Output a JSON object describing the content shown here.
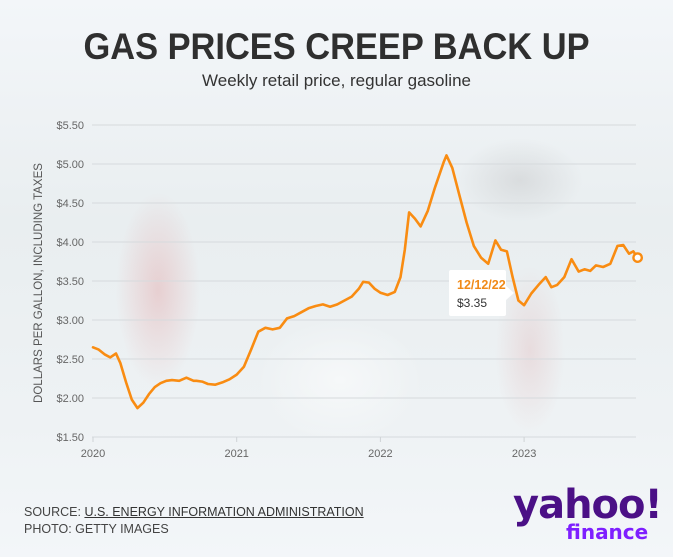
{
  "header": {
    "title": "GAS PRICES CREEP BACK UP",
    "subtitle": "Weekly retail price, regular gasoline"
  },
  "callout": {
    "date": "12/12/22",
    "value": "$3.35"
  },
  "footer": {
    "source_prefix": "SOURCE: ",
    "source_link": "U.S. ENERGY INFORMATION ADMINISTRATION",
    "photo": "PHOTO: GETTY IMAGES"
  },
  "logo": {
    "brand": "yahoo!",
    "product": "finance"
  },
  "colors": {
    "line": "#f98c12",
    "title": "#2f2f2f",
    "callout_date": "#f08a18",
    "logo_primary": "#4b1086",
    "logo_secondary": "#7e1fff"
  },
  "chart_data": {
    "type": "line",
    "title": "GAS PRICES CREEP BACK UP",
    "subtitle": "Weekly retail price, regular gasoline",
    "xlabel": "",
    "ylabel": "DOLLARS PER GALLON, INCLUDING TAXES",
    "ylim": [
      1.5,
      5.5
    ],
    "xlim": [
      2020.0,
      2023.79
    ],
    "grid": true,
    "y_ticks": [
      {
        "value": 5.5,
        "label": "$5.50"
      },
      {
        "value": 5.0,
        "label": "$5.00"
      },
      {
        "value": 4.5,
        "label": "$4.50"
      },
      {
        "value": 4.0,
        "label": "$4.00"
      },
      {
        "value": 3.5,
        "label": "$3.50"
      },
      {
        "value": 3.0,
        "label": "$3.00"
      },
      {
        "value": 2.5,
        "label": "$2.50"
      },
      {
        "value": 2.0,
        "label": "$2.00"
      },
      {
        "value": 1.5,
        "label": "$1.50"
      }
    ],
    "x_ticks": [
      {
        "value": 2020,
        "label": "2020"
      },
      {
        "value": 2021,
        "label": "2021"
      },
      {
        "value": 2022,
        "label": "2022"
      },
      {
        "value": 2023,
        "label": "2023"
      }
    ],
    "series": [
      {
        "name": "Regular gasoline weekly retail price",
        "x": [
          2020.0,
          2020.04,
          2020.08,
          2020.12,
          2020.16,
          2020.19,
          2020.23,
          2020.27,
          2020.31,
          2020.35,
          2020.39,
          2020.43,
          2020.47,
          2020.51,
          2020.55,
          2020.6,
          2020.65,
          2020.7,
          2020.72,
          2020.76,
          2020.8,
          2020.85,
          2020.9,
          2020.95,
          2021.0,
          2021.05,
          2021.1,
          2021.15,
          2021.2,
          2021.25,
          2021.3,
          2021.35,
          2021.4,
          2021.45,
          2021.5,
          2021.55,
          2021.6,
          2021.65,
          2021.7,
          2021.75,
          2021.8,
          2021.85,
          2021.88,
          2021.92,
          2021.96,
          2022.0,
          2022.05,
          2022.1,
          2022.14,
          2022.17,
          2022.2,
          2022.24,
          2022.28,
          2022.33,
          2022.38,
          2022.44,
          2022.46,
          2022.5,
          2022.55,
          2022.6,
          2022.65,
          2022.7,
          2022.75,
          2022.8,
          2022.84,
          2022.88,
          2022.92,
          2022.96,
          2023.0,
          2023.05,
          2023.1,
          2023.15,
          2023.19,
          2023.23,
          2023.28,
          2023.33,
          2023.38,
          2023.42,
          2023.46,
          2023.5,
          2023.55,
          2023.6,
          2023.65,
          2023.69,
          2023.73,
          2023.76,
          2023.79
        ],
        "values": [
          2.65,
          2.62,
          2.56,
          2.52,
          2.57,
          2.45,
          2.2,
          1.98,
          1.87,
          1.94,
          2.05,
          2.14,
          2.19,
          2.22,
          2.23,
          2.22,
          2.26,
          2.22,
          2.22,
          2.21,
          2.18,
          2.17,
          2.2,
          2.24,
          2.3,
          2.4,
          2.62,
          2.85,
          2.9,
          2.88,
          2.9,
          3.02,
          3.05,
          3.1,
          3.15,
          3.18,
          3.2,
          3.17,
          3.2,
          3.25,
          3.3,
          3.4,
          3.49,
          3.48,
          3.4,
          3.35,
          3.32,
          3.36,
          3.55,
          3.9,
          4.38,
          4.3,
          4.2,
          4.4,
          4.7,
          5.02,
          5.11,
          4.95,
          4.6,
          4.25,
          3.95,
          3.8,
          3.72,
          4.02,
          3.9,
          3.88,
          3.55,
          3.25,
          3.19,
          3.34,
          3.45,
          3.55,
          3.42,
          3.45,
          3.55,
          3.78,
          3.62,
          3.65,
          3.63,
          3.7,
          3.68,
          3.72,
          3.95,
          3.96,
          3.85,
          3.88,
          3.8
        ]
      }
    ],
    "annotations": [
      {
        "x": 2022.95,
        "label_date": "12/12/22",
        "label_value": "$3.35"
      }
    ]
  }
}
